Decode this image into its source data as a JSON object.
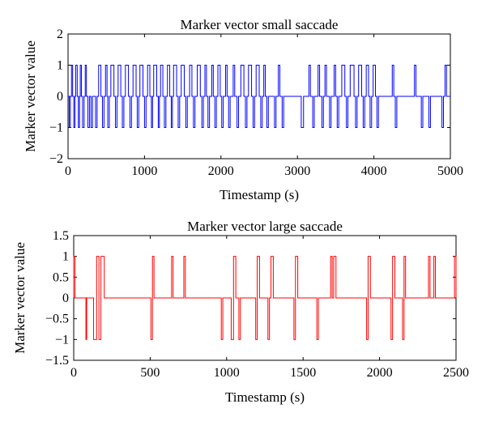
{
  "chart_data": [
    {
      "type": "line",
      "title": "Marker vector small saccade",
      "xlabel": "Timestamp (s)",
      "ylabel": "Marker vector value",
      "xlim": [
        0,
        5000
      ],
      "ylim": [
        -2,
        2
      ],
      "x_ticks": [
        0,
        1000,
        2000,
        3000,
        4000,
        5000
      ],
      "y_ticks": [
        -2,
        -1,
        0,
        1,
        2
      ],
      "x_tick_labels": [
        "0",
        "1000",
        "2000",
        "3000",
        "4000",
        "5000"
      ],
      "y_tick_labels": [
        "−2",
        "−1",
        "0",
        "1",
        "2"
      ],
      "grid": false,
      "series": [
        {
          "name": "small saccade",
          "color": "#0000ff",
          "pulses": [
            [
              15,
              30,
              -1
            ],
            [
              45,
              60,
              1
            ],
            [
              75,
              90,
              -1
            ],
            [
              100,
              120,
              1
            ],
            [
              135,
              150,
              -1
            ],
            [
              160,
              175,
              1
            ],
            [
              190,
              210,
              -1
            ],
            [
              225,
              240,
              1
            ],
            [
              260,
              280,
              -1
            ],
            [
              300,
              320,
              -1
            ],
            [
              360,
              380,
              -1
            ],
            [
              400,
              430,
              1
            ],
            [
              450,
              470,
              -1
            ],
            [
              490,
              510,
              1
            ],
            [
              520,
              540,
              -1
            ],
            [
              560,
              600,
              1
            ],
            [
              620,
              640,
              -1
            ],
            [
              655,
              690,
              1
            ],
            [
              710,
              730,
              -1
            ],
            [
              750,
              790,
              1
            ],
            [
              810,
              830,
              -1
            ],
            [
              850,
              890,
              1
            ],
            [
              905,
              925,
              -1
            ],
            [
              940,
              980,
              1
            ],
            [
              1000,
              1020,
              -1
            ],
            [
              1040,
              1070,
              1
            ],
            [
              1090,
              1105,
              -1
            ],
            [
              1120,
              1160,
              1
            ],
            [
              1180,
              1195,
              -1
            ],
            [
              1210,
              1240,
              1
            ],
            [
              1260,
              1280,
              -1
            ],
            [
              1300,
              1330,
              1
            ],
            [
              1350,
              1365,
              -1
            ],
            [
              1380,
              1420,
              1
            ],
            [
              1440,
              1460,
              -1
            ],
            [
              1480,
              1520,
              1
            ],
            [
              1540,
              1560,
              -1
            ],
            [
              1590,
              1620,
              1
            ],
            [
              1640,
              1660,
              -1
            ],
            [
              1690,
              1730,
              1
            ],
            [
              1750,
              1770,
              -1
            ],
            [
              1790,
              1810,
              1
            ],
            [
              1830,
              1850,
              -1
            ],
            [
              1880,
              1900,
              1
            ],
            [
              1920,
              1940,
              -1
            ],
            [
              1960,
              1990,
              1
            ],
            [
              2010,
              2030,
              -1
            ],
            [
              2060,
              2080,
              1
            ],
            [
              2100,
              2120,
              -1
            ],
            [
              2160,
              2180,
              1
            ],
            [
              2210,
              2230,
              -1
            ],
            [
              2260,
              2300,
              1
            ],
            [
              2320,
              2340,
              -1
            ],
            [
              2360,
              2400,
              1
            ],
            [
              2420,
              2440,
              -1
            ],
            [
              2460,
              2500,
              1
            ],
            [
              2520,
              2540,
              -1
            ],
            [
              2560,
              2580,
              1
            ],
            [
              2600,
              2620,
              -1
            ],
            [
              2700,
              2720,
              -1
            ],
            [
              2750,
              2770,
              1
            ],
            [
              2800,
              2820,
              -1
            ],
            [
              3050,
              3080,
              -1
            ],
            [
              3150,
              3170,
              1
            ],
            [
              3200,
              3220,
              -1
            ],
            [
              3270,
              3290,
              1
            ],
            [
              3320,
              3340,
              -1
            ],
            [
              3360,
              3380,
              1
            ],
            [
              3420,
              3440,
              -1
            ],
            [
              3480,
              3500,
              1
            ],
            [
              3520,
              3540,
              -1
            ],
            [
              3580,
              3620,
              1
            ],
            [
              3640,
              3660,
              -1
            ],
            [
              3690,
              3740,
              1
            ],
            [
              3760,
              3780,
              -1
            ],
            [
              3800,
              3840,
              1
            ],
            [
              3860,
              3880,
              -1
            ],
            [
              3900,
              3930,
              1
            ],
            [
              3950,
              3970,
              -1
            ],
            [
              3990,
              4020,
              1
            ],
            [
              4040,
              4060,
              -1
            ],
            [
              4240,
              4260,
              1
            ],
            [
              4280,
              4300,
              -1
            ],
            [
              4530,
              4550,
              1
            ],
            [
              4620,
              4640,
              -1
            ],
            [
              4720,
              4740,
              -1
            ],
            [
              4890,
              4910,
              -1
            ],
            [
              4930,
              4950,
              1
            ]
          ]
        }
      ]
    },
    {
      "type": "line",
      "title": "Marker vector large saccade",
      "xlabel": "Timestamp (s)",
      "ylabel": "Marker vector value",
      "xlim": [
        0,
        2500
      ],
      "ylim": [
        -1.5,
        1.5
      ],
      "x_ticks": [
        0,
        500,
        1000,
        1500,
        2000,
        2500
      ],
      "y_ticks": [
        -1.5,
        -1,
        -0.5,
        0,
        0.5,
        1,
        1.5
      ],
      "x_tick_labels": [
        "0",
        "500",
        "1000",
        "1500",
        "2000",
        "2500"
      ],
      "y_tick_labels": [
        "−1.5",
        "−1",
        "−0.5",
        "0",
        "0.5",
        "1",
        "1.5"
      ],
      "grid": false,
      "series": [
        {
          "name": "large saccade",
          "color": "#ff0000",
          "pulses": [
            [
              0,
              8,
              1
            ],
            [
              80,
              85,
              -1
            ],
            [
              130,
              150,
              -1
            ],
            [
              150,
              165,
              1
            ],
            [
              165,
              178,
              -1
            ],
            [
              178,
              200,
              1
            ],
            [
              505,
              515,
              -1
            ],
            [
              515,
              525,
              1
            ],
            [
              640,
              650,
              1
            ],
            [
              720,
              730,
              1
            ],
            [
              965,
              975,
              -1
            ],
            [
              1030,
              1045,
              -1
            ],
            [
              1045,
              1060,
              1
            ],
            [
              1080,
              1090,
              -1
            ],
            [
              1190,
              1200,
              -1
            ],
            [
              1200,
              1215,
              1
            ],
            [
              1270,
              1280,
              -1
            ],
            [
              1290,
              1305,
              1
            ],
            [
              1440,
              1450,
              -1
            ],
            [
              1450,
              1465,
              1
            ],
            [
              1590,
              1600,
              -1
            ],
            [
              1680,
              1690,
              1
            ],
            [
              1700,
              1715,
              1
            ],
            [
              1915,
              1925,
              -1
            ],
            [
              1925,
              1940,
              1
            ],
            [
              2075,
              2085,
              -1
            ],
            [
              2085,
              2100,
              1
            ],
            [
              2150,
              2160,
              -1
            ],
            [
              2160,
              2170,
              1
            ],
            [
              2320,
              2330,
              1
            ],
            [
              2355,
              2365,
              1
            ],
            [
              2490,
              2500,
              1
            ]
          ]
        }
      ]
    }
  ]
}
